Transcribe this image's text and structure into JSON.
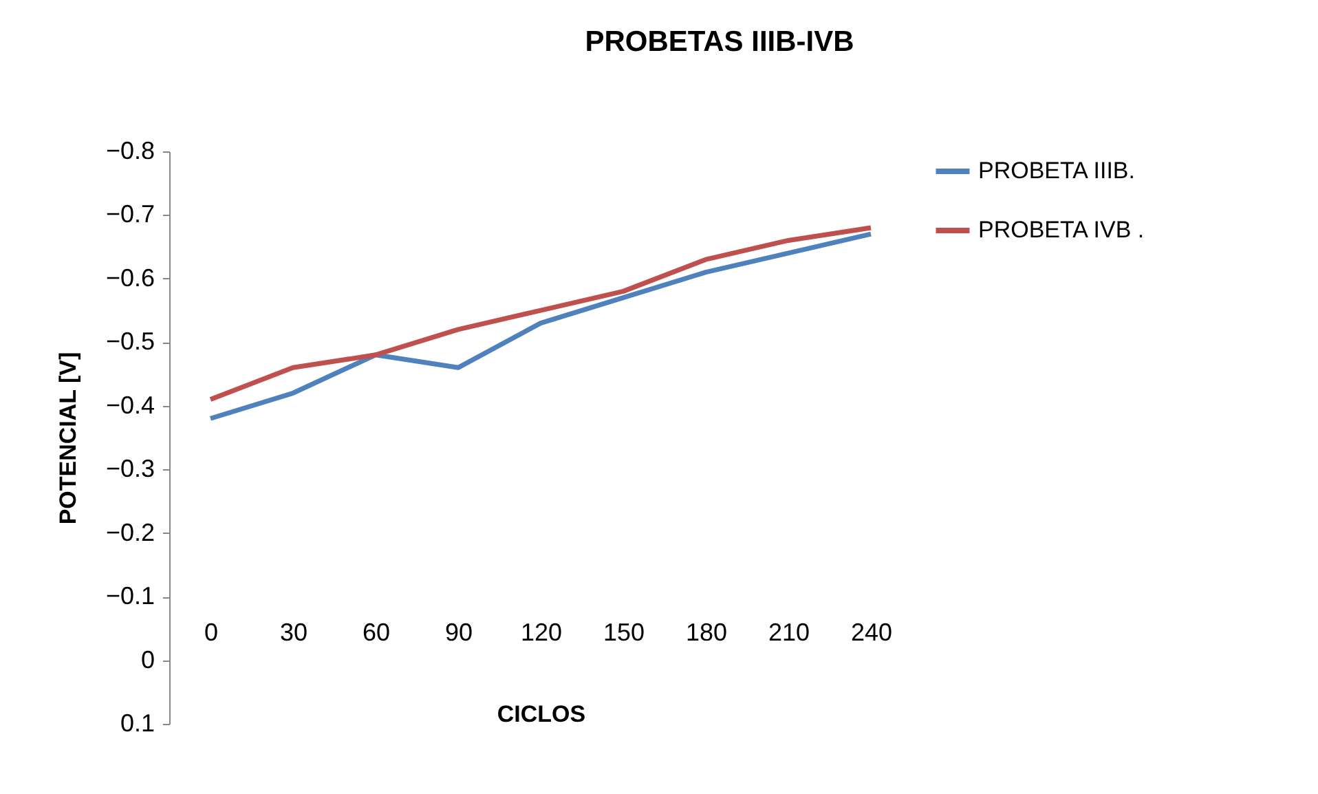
{
  "chart_data": {
    "type": "line",
    "title": "PROBETAS IIIB-IVB",
    "xlabel": "CICLOS",
    "ylabel": "POTENCIAL [V]",
    "categories": [
      "0",
      "30",
      "60",
      "90",
      "120",
      "150",
      "180",
      "210",
      "240"
    ],
    "series": [
      {
        "name": "PROBETA IIIB.",
        "color": "#4f81bd",
        "values": [
          -0.38,
          -0.42,
          -0.48,
          -0.46,
          -0.53,
          -0.57,
          -0.61,
          -0.64,
          -0.67
        ]
      },
      {
        "name": "PROBETA IVB .",
        "color": "#c0504d",
        "values": [
          -0.41,
          -0.46,
          -0.48,
          -0.52,
          -0.55,
          -0.58,
          -0.63,
          -0.66,
          -0.68
        ]
      }
    ],
    "ylim": [
      0.1,
      -0.8
    ],
    "yticks": [
      0.1,
      0,
      -0.1,
      -0.2,
      -0.3,
      -0.4,
      -0.5,
      -0.6,
      -0.7,
      -0.8
    ],
    "grid": false,
    "legend": "right",
    "marker": "none",
    "line_style": "solid"
  }
}
